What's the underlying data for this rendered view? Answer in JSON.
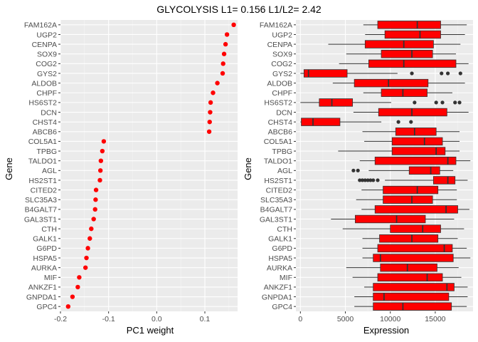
{
  "title": "GLYCOLYSIS L1= 0.156 L1/L2= 2.42",
  "chart_data": [
    {
      "type": "scatter",
      "xlabel": "PC1 weight",
      "ylabel": "Gene",
      "xlim": [
        -0.2,
        0.168
      ],
      "xticks": [
        -0.2,
        -0.1,
        0.0,
        0.1
      ],
      "xtick_labels": [
        "-0.2",
        "-0.1",
        "0.0",
        "0.1"
      ],
      "point_color": "#ff0000",
      "categories": [
        "FAM162A",
        "UGP2",
        "CENPA",
        "SOX9",
        "COG2",
        "GYS2",
        "ALDOB",
        "CHPF",
        "HS6ST2",
        "DCN",
        "CHST4",
        "ABCB6",
        "COL5A1",
        "TPBG",
        "TALDO1",
        "AGL",
        "HS2ST1",
        "CITED2",
        "SLC35A3",
        "B4GALT7",
        "GAL3ST1",
        "CTH",
        "GALK1",
        "G6PD",
        "HSPA5",
        "AURKA",
        "MIF",
        "ANKZF1",
        "GNPDA1",
        "GPC4"
      ],
      "values": [
        0.16,
        0.146,
        0.143,
        0.14,
        0.138,
        0.137,
        0.126,
        0.117,
        0.112,
        0.111,
        0.11,
        0.109,
        -0.11,
        -0.113,
        -0.116,
        -0.117,
        -0.118,
        -0.126,
        -0.127,
        -0.128,
        -0.131,
        -0.136,
        -0.139,
        -0.143,
        -0.146,
        -0.148,
        -0.161,
        -0.164,
        -0.175,
        -0.184
      ]
    },
    {
      "type": "box",
      "xlabel": "Expression",
      "ylabel": "Gene",
      "xlim": [
        -500,
        19200
      ],
      "xticks": [
        0,
        5000,
        10000,
        15000
      ],
      "xtick_labels": [
        "0",
        "5000",
        "10000",
        "15000"
      ],
      "box_color": "#ff0000",
      "categories": [
        "FAM162A",
        "UGP2",
        "CENPA",
        "SOX9",
        "COG2",
        "GYS2",
        "ALDOB",
        "CHPF",
        "HS6ST2",
        "DCN",
        "CHST4",
        "ABCB6",
        "COL5A1",
        "TPBG",
        "TALDO1",
        "AGL",
        "HS2ST1",
        "CITED2",
        "SLC35A3",
        "B4GALT7",
        "GAL3ST1",
        "CTH",
        "GALK1",
        "G6PD",
        "HSPA5",
        "AURKA",
        "MIF",
        "ANKZF1",
        "GNPDA1",
        "GPC4"
      ],
      "boxes": [
        {
          "min": 7000,
          "q1": 8600,
          "median": 13000,
          "q3": 15600,
          "max": 18500,
          "outliers": []
        },
        {
          "min": 7200,
          "q1": 9400,
          "median": 13300,
          "q3": 15600,
          "max": 18300,
          "outliers": []
        },
        {
          "min": 3100,
          "q1": 7200,
          "median": 11500,
          "q3": 14800,
          "max": 17800,
          "outliers": []
        },
        {
          "min": 5100,
          "q1": 9000,
          "median": 12400,
          "q3": 14700,
          "max": 17300,
          "outliers": []
        },
        {
          "min": 4300,
          "q1": 7600,
          "median": 11500,
          "q3": 17300,
          "max": 18700,
          "outliers": []
        },
        {
          "min": 0,
          "q1": 400,
          "median": 900,
          "q3": 5200,
          "max": 10800,
          "outliers": [
            12400,
            15700,
            16400,
            17800
          ]
        },
        {
          "min": 3600,
          "q1": 6000,
          "median": 9800,
          "q3": 14200,
          "max": 18300,
          "outliers": []
        },
        {
          "min": 7000,
          "q1": 9000,
          "median": 11400,
          "q3": 14100,
          "max": 16900,
          "outliers": []
        },
        {
          "min": 0,
          "q1": 2100,
          "median": 3500,
          "q3": 5800,
          "max": 10100,
          "outliers": [
            12700,
            15100,
            15800,
            17200,
            17700
          ]
        },
        {
          "min": 5900,
          "q1": 8700,
          "median": 12400,
          "q3": 16300,
          "max": 18700,
          "outliers": []
        },
        {
          "min": 0,
          "q1": 100,
          "median": 1400,
          "q3": 4400,
          "max": 9000,
          "outliers": [
            10900,
            12300
          ]
        },
        {
          "min": 6900,
          "q1": 10600,
          "median": 12700,
          "q3": 15100,
          "max": 17700,
          "outliers": []
        },
        {
          "min": 7100,
          "q1": 10200,
          "median": 13800,
          "q3": 15800,
          "max": 17700,
          "outliers": []
        },
        {
          "min": 4200,
          "q1": 10200,
          "median": 15100,
          "q3": 16100,
          "max": 17700,
          "outliers": []
        },
        {
          "min": 6600,
          "q1": 8300,
          "median": 16400,
          "q3": 17300,
          "max": 18900,
          "outliers": []
        },
        {
          "min": 7600,
          "q1": 12100,
          "median": 14500,
          "q3": 15500,
          "max": 17000,
          "outliers": [
            5900,
            6400
          ]
        },
        {
          "min": 9400,
          "q1": 14800,
          "median": 16400,
          "q3": 17200,
          "max": 18600,
          "outliers": [
            6600,
            6900,
            7200,
            7500,
            7800,
            8100,
            8600
          ]
        },
        {
          "min": 6800,
          "q1": 9200,
          "median": 13000,
          "q3": 15300,
          "max": 17400,
          "outliers": []
        },
        {
          "min": 6200,
          "q1": 9200,
          "median": 12400,
          "q3": 14700,
          "max": 17400,
          "outliers": []
        },
        {
          "min": 6800,
          "q1": 8300,
          "median": 16200,
          "q3": 17500,
          "max": 18800,
          "outliers": []
        },
        {
          "min": 3400,
          "q1": 6100,
          "median": 10700,
          "q3": 13900,
          "max": 17100,
          "outliers": []
        },
        {
          "min": 4700,
          "q1": 10000,
          "median": 13600,
          "q3": 15600,
          "max": 18200,
          "outliers": []
        },
        {
          "min": 6900,
          "q1": 8800,
          "median": 12400,
          "q3": 15300,
          "max": 17500,
          "outliers": []
        },
        {
          "min": 6900,
          "q1": 8600,
          "median": 16000,
          "q3": 16900,
          "max": 18500,
          "outliers": []
        },
        {
          "min": 6900,
          "q1": 8100,
          "median": 8900,
          "q3": 17000,
          "max": 18900,
          "outliers": []
        },
        {
          "min": 5100,
          "q1": 8900,
          "median": 11900,
          "q3": 15200,
          "max": 17600,
          "outliers": []
        },
        {
          "min": 5800,
          "q1": 8600,
          "median": 14100,
          "q3": 15800,
          "max": 17900,
          "outliers": []
        },
        {
          "min": 7100,
          "q1": 8100,
          "median": 16300,
          "q3": 17100,
          "max": 18600,
          "outliers": []
        },
        {
          "min": 6000,
          "q1": 8100,
          "median": 9300,
          "q3": 16500,
          "max": 18600,
          "outliers": []
        },
        {
          "min": 6000,
          "q1": 8100,
          "median": 11400,
          "q3": 16800,
          "max": 18500,
          "outliers": []
        }
      ]
    }
  ]
}
